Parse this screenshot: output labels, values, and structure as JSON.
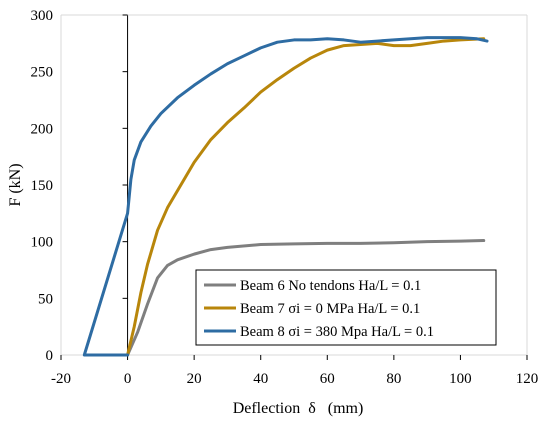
{
  "chart_data": {
    "type": "line",
    "xlabel": "Deflection  δ   (mm)",
    "ylabel": "F (kN)",
    "xlim": [
      -20,
      120
    ],
    "ylim": [
      0,
      300
    ],
    "x_ticks": [
      -20,
      0,
      20,
      40,
      60,
      80,
      100,
      120
    ],
    "y_ticks": [
      0,
      50,
      100,
      150,
      200,
      250,
      300
    ],
    "grid": false,
    "legend_position": "bottom-right",
    "series": [
      {
        "name": "Beam 6 No tendons Ha/L = 0.1",
        "color": "#7f7f7f",
        "points": [
          [
            0,
            0
          ],
          [
            3,
            20
          ],
          [
            6,
            45
          ],
          [
            9,
            68
          ],
          [
            12,
            79
          ],
          [
            15,
            84
          ],
          [
            20,
            89
          ],
          [
            25,
            93
          ],
          [
            30,
            95
          ],
          [
            40,
            97.5
          ],
          [
            50,
            98
          ],
          [
            60,
            98.5
          ],
          [
            70,
            98.5
          ],
          [
            80,
            99
          ],
          [
            90,
            100
          ],
          [
            100,
            100.5
          ],
          [
            107,
            101
          ]
        ]
      },
      {
        "name": "Beam 7 σi = 0 MPa Ha/L = 0.1",
        "color": "#b8860b",
        "points": [
          [
            0,
            0
          ],
          [
            2,
            25
          ],
          [
            4,
            55
          ],
          [
            6,
            80
          ],
          [
            9,
            110
          ],
          [
            12,
            130
          ],
          [
            16,
            150
          ],
          [
            20,
            170
          ],
          [
            25,
            190
          ],
          [
            30,
            205
          ],
          [
            35,
            218
          ],
          [
            40,
            232
          ],
          [
            45,
            243
          ],
          [
            50,
            253
          ],
          [
            55,
            262
          ],
          [
            60,
            269
          ],
          [
            65,
            273
          ],
          [
            70,
            274
          ],
          [
            75,
            275
          ],
          [
            80,
            273
          ],
          [
            85,
            273
          ],
          [
            90,
            275
          ],
          [
            95,
            277
          ],
          [
            100,
            278
          ],
          [
            107,
            279
          ]
        ]
      },
      {
        "name": "Beam 8 σi = 380 Mpa Ha/L = 0.1",
        "color": "#2e6ca3",
        "points": [
          [
            -13,
            0
          ],
          [
            -13,
            0
          ],
          [
            0,
            0
          ],
          [
            -13,
            0
          ],
          [
            0,
            125
          ],
          [
            0.5,
            140
          ],
          [
            1,
            155
          ],
          [
            2,
            172
          ],
          [
            4,
            188
          ],
          [
            7,
            202
          ],
          [
            10,
            213
          ],
          [
            15,
            227
          ],
          [
            20,
            238
          ],
          [
            25,
            248
          ],
          [
            30,
            257
          ],
          [
            35,
            264
          ],
          [
            40,
            271
          ],
          [
            45,
            276
          ],
          [
            50,
            278
          ],
          [
            55,
            278
          ],
          [
            60,
            279
          ],
          [
            65,
            278
          ],
          [
            70,
            276
          ],
          [
            75,
            277
          ],
          [
            80,
            278
          ],
          [
            85,
            279
          ],
          [
            90,
            280
          ],
          [
            95,
            280
          ],
          [
            100,
            280
          ],
          [
            105,
            279
          ],
          [
            108,
            277
          ]
        ]
      }
    ]
  }
}
